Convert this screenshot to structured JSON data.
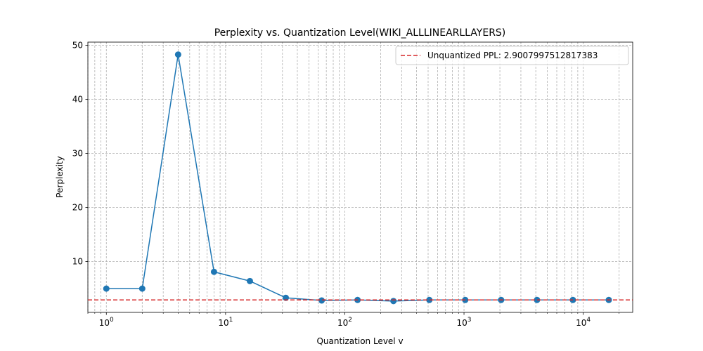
{
  "chart_data": {
    "type": "line",
    "title": "Perplexity vs. Quantization Level(WIKI_ALLLINEARLLAYERS)",
    "xlabel": "Quantization Level v",
    "ylabel": "Perplexity",
    "xscale": "log",
    "xlim": [
      0.7,
      26000
    ],
    "ylim": [
      0.6,
      50.6
    ],
    "grid": true,
    "legend_position": "top-right",
    "xticks": [
      {
        "value": 1,
        "base": "10",
        "exp": "0"
      },
      {
        "value": 10,
        "base": "10",
        "exp": "1"
      },
      {
        "value": 100,
        "base": "10",
        "exp": "2"
      },
      {
        "value": 1000,
        "base": "10",
        "exp": "3"
      },
      {
        "value": 10000,
        "base": "10",
        "exp": "4"
      }
    ],
    "yticks": [
      10,
      20,
      30,
      40,
      50
    ],
    "series": [
      {
        "name": "",
        "color": "#1f77b4",
        "marker": "circle",
        "x": [
          1,
          2,
          4,
          8,
          16,
          32,
          64,
          128,
          256,
          512,
          1024,
          2048,
          4096,
          8192,
          16384
        ],
        "y": [
          5.0,
          5.0,
          48.3,
          8.1,
          6.4,
          3.3,
          2.8,
          2.9,
          2.7,
          2.9,
          2.9,
          2.9,
          2.9,
          2.9,
          2.9
        ]
      }
    ],
    "reference_line": {
      "label": "Unquantized PPL: 2.9007997512817383",
      "value": 2.9007997512817383,
      "color": "#d62728",
      "style": "dashed"
    }
  }
}
